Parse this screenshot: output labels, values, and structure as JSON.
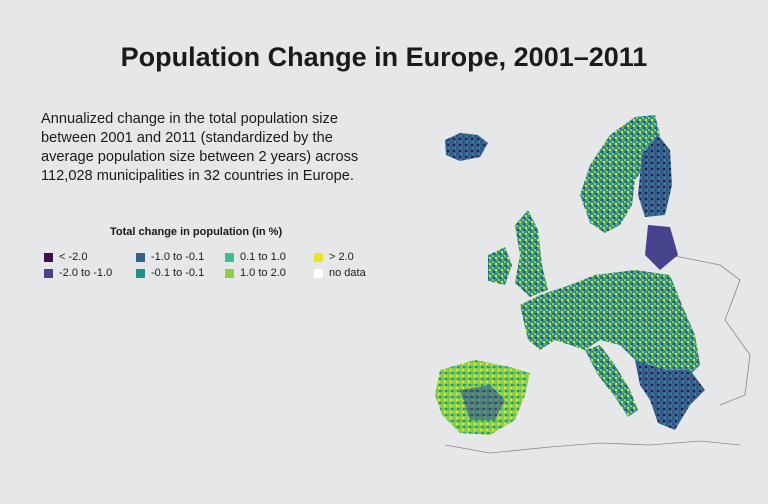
{
  "title": "Population Change in Europe, 2001–2011",
  "description": "Annualized change in the total population size between 2001 and 2011 (standardized by the average population size between 2 years) across 112,028 municipalities in 32 countries in Europe.",
  "legend": {
    "title": "Total change in population (in %)",
    "items": [
      {
        "label": "< -2.0",
        "color": "#3b0f4f"
      },
      {
        "label": "-2.0 to -1.0",
        "color": "#47428c"
      },
      {
        "label": "-1.0 to -0.1",
        "color": "#33638d"
      },
      {
        "label": "-0.1 to -0.1",
        "color": "#21918c"
      },
      {
        "label": "0.1 to 1.0",
        "color": "#3bbf8f"
      },
      {
        "label": "1.0 to 2.0",
        "color": "#8fcf45"
      },
      {
        "label": "> 2.0",
        "color": "#e6e52a"
      },
      {
        "label": "no data",
        "color": "#ffffff"
      }
    ]
  }
}
